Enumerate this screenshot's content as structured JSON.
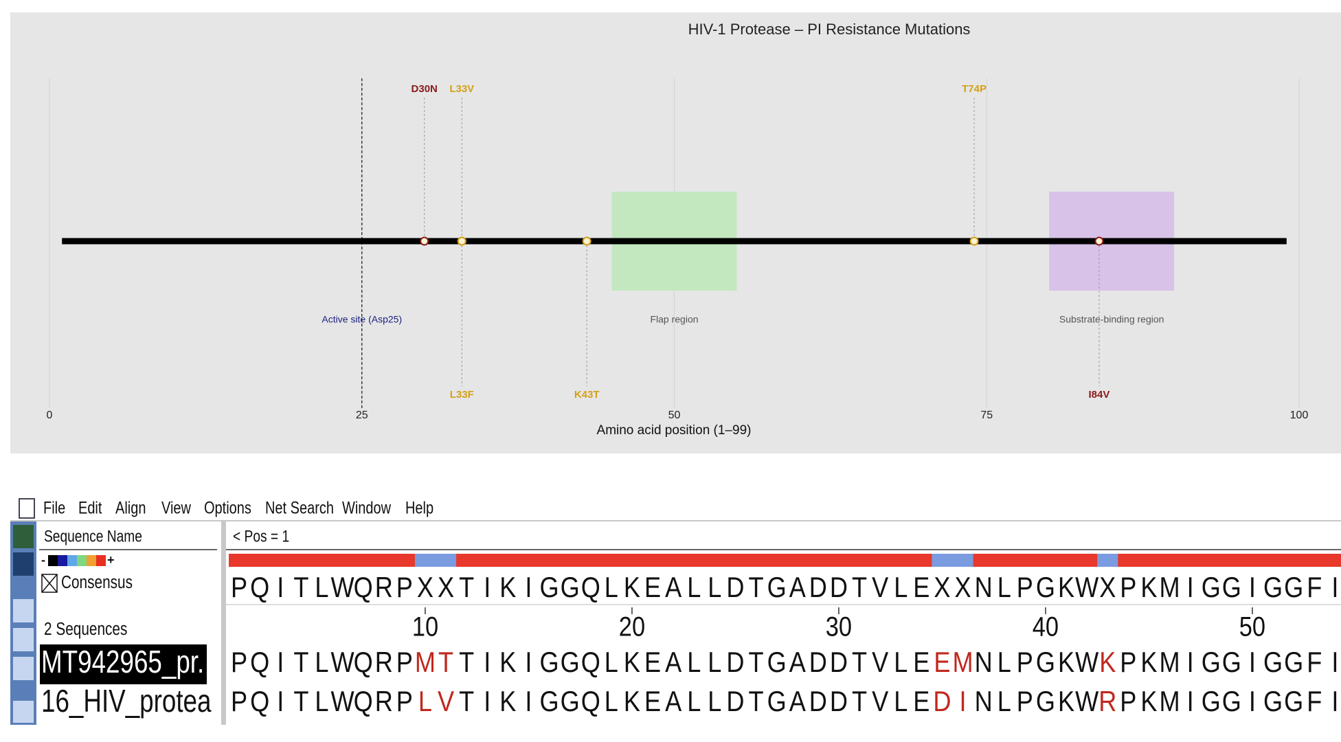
{
  "chart_data": {
    "type": "mutation-map",
    "title": "HIV-1 Protease – PI Resistance Mutations",
    "x_label": "Amino acid position (1–99)",
    "xlim": [
      0,
      100
    ],
    "xticks": [
      0,
      25,
      50,
      75,
      100
    ],
    "grid": true,
    "sequence_range": [
      1,
      99
    ],
    "mutations": [
      {
        "name": "D30N",
        "position": 30,
        "side": "top",
        "color": "#8b1a1a"
      },
      {
        "name": "L33V",
        "position": 33,
        "side": "top",
        "color": "#d4a017"
      },
      {
        "name": "T74P",
        "position": 74,
        "side": "top",
        "color": "#d4a017"
      },
      {
        "name": "L33F",
        "position": 33,
        "side": "bottom",
        "color": "#d4a017"
      },
      {
        "name": "K43T",
        "position": 43,
        "side": "bottom",
        "color": "#d4a017"
      },
      {
        "name": "I84V",
        "position": 84,
        "side": "bottom",
        "color": "#8b1a1a"
      }
    ],
    "regions": [
      {
        "name": "Flap region",
        "start": 45,
        "end": 55,
        "color": "#c3e8c0"
      },
      {
        "name": "Substrate-binding region",
        "start": 80,
        "end": 90,
        "color": "#d8c2e8"
      }
    ],
    "annotations": [
      {
        "label": "Active site (Asp25)",
        "position": 25
      }
    ]
  },
  "app": {
    "menu": [
      "File",
      "Edit",
      "Align",
      "View",
      "Options",
      "Net Search",
      "Window",
      "Help"
    ],
    "name_header": "Sequence Name",
    "color_scale": {
      "min_label": "-",
      "max_label": "+",
      "colors": [
        "#000000",
        "#1a1aa0",
        "#5fa8e8",
        "#7fd87f",
        "#f0a030",
        "#e83020"
      ]
    },
    "consensus_label": "Consensus",
    "count_label": "2 Sequences",
    "position_label": "< Pos = 1",
    "ruler": [
      10,
      20,
      30,
      40,
      50
    ],
    "conserved_color": "#e8382b",
    "variable_color": "#7b9be0",
    "mismatch_color": "#c0281e",
    "consensus": [
      "P",
      "Q",
      "I",
      "T",
      "L",
      "W",
      "Q",
      "R",
      "P",
      "X",
      "X",
      "T",
      "I",
      "K",
      "I",
      "G",
      "G",
      "Q",
      "L",
      "K",
      "E",
      "A",
      "L",
      "L",
      "D",
      "T",
      "G",
      "A",
      "D",
      "D",
      "T",
      "V",
      "L",
      "E",
      "X",
      "X",
      "N",
      "L",
      "P",
      "G",
      "K",
      "W",
      "X",
      "P",
      "K",
      "M",
      "I",
      "G",
      "G",
      "I",
      "G",
      "G",
      "F",
      "I"
    ],
    "sequences": [
      {
        "name": "MT942965_pr.",
        "residues": [
          "P",
          "Q",
          "I",
          "T",
          "L",
          "W",
          "Q",
          "R",
          "P",
          "M",
          "T",
          "T",
          "I",
          "K",
          "I",
          "G",
          "G",
          "Q",
          "L",
          "K",
          "E",
          "A",
          "L",
          "L",
          "D",
          "T",
          "G",
          "A",
          "D",
          "D",
          "T",
          "V",
          "L",
          "E",
          "E",
          "M",
          "N",
          "L",
          "P",
          "G",
          "K",
          "W",
          "K",
          "P",
          "K",
          "M",
          "I",
          "G",
          "G",
          "I",
          "G",
          "G",
          "F",
          "I"
        ]
      },
      {
        "name": "16_HIV_protea",
        "residues": [
          "P",
          "Q",
          "I",
          "T",
          "L",
          "W",
          "Q",
          "R",
          "P",
          "L",
          "V",
          "T",
          "I",
          "K",
          "I",
          "G",
          "G",
          "Q",
          "L",
          "K",
          "E",
          "A",
          "L",
          "L",
          "D",
          "T",
          "G",
          "A",
          "D",
          "D",
          "T",
          "V",
          "L",
          "E",
          "D",
          "I",
          "N",
          "L",
          "P",
          "G",
          "K",
          "W",
          "R",
          "P",
          "K",
          "M",
          "I",
          "G",
          "G",
          "I",
          "G",
          "G",
          "F",
          "I"
        ]
      }
    ]
  }
}
